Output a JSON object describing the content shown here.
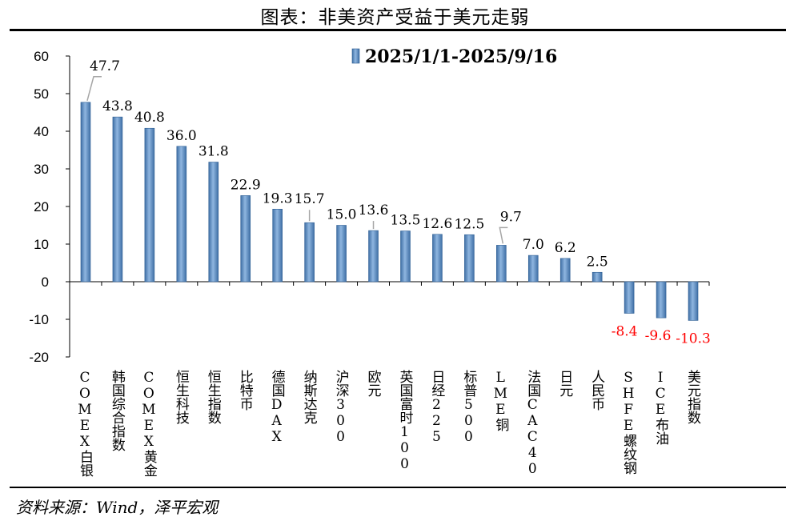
{
  "title": "图表：非美资产受益于美元走弱",
  "source": "资料来源：Wind，泽平宏观",
  "chart_data": {
    "type": "bar",
    "legend": "2025/1/1-2025/9/16",
    "legend_position": "top-center",
    "ylim": [
      -20,
      60
    ],
    "yticks": [
      "60",
      "50",
      "40",
      "30",
      "20",
      "10",
      "0",
      "-10",
      "-20"
    ],
    "grid": false,
    "bar_color": "#5b8fc7",
    "negative_label_color": "#ff0000",
    "categories": [
      "COMEX白银",
      "韩国综合指数",
      "COMEX黄金",
      "恒生科技",
      "恒生指数",
      "比特币",
      "德国DAX",
      "纳斯达克",
      "沪深300",
      "欧元",
      "英国富时100",
      "日经225",
      "标普500",
      "LME铜",
      "法国CAC40",
      "日元",
      "人民币",
      "SHFE螺纹钢",
      "ICE布油",
      "美元指数"
    ],
    "values": [
      47.7,
      43.8,
      40.8,
      36.0,
      31.8,
      22.9,
      19.3,
      15.7,
      15.0,
      13.6,
      13.5,
      12.6,
      12.5,
      9.7,
      7.0,
      6.2,
      2.5,
      -8.4,
      -9.6,
      -10.3
    ],
    "data_labels": [
      "47.7",
      "43.8",
      "40.8",
      "36.0",
      "31.8",
      "22.9",
      "19.3",
      "15.7",
      "15.0",
      "13.6",
      "13.5",
      "12.6",
      "12.5",
      "9.7",
      "7.0",
      "6.2",
      "2.5",
      "-8.4",
      "-9.6",
      "-10.3"
    ]
  }
}
